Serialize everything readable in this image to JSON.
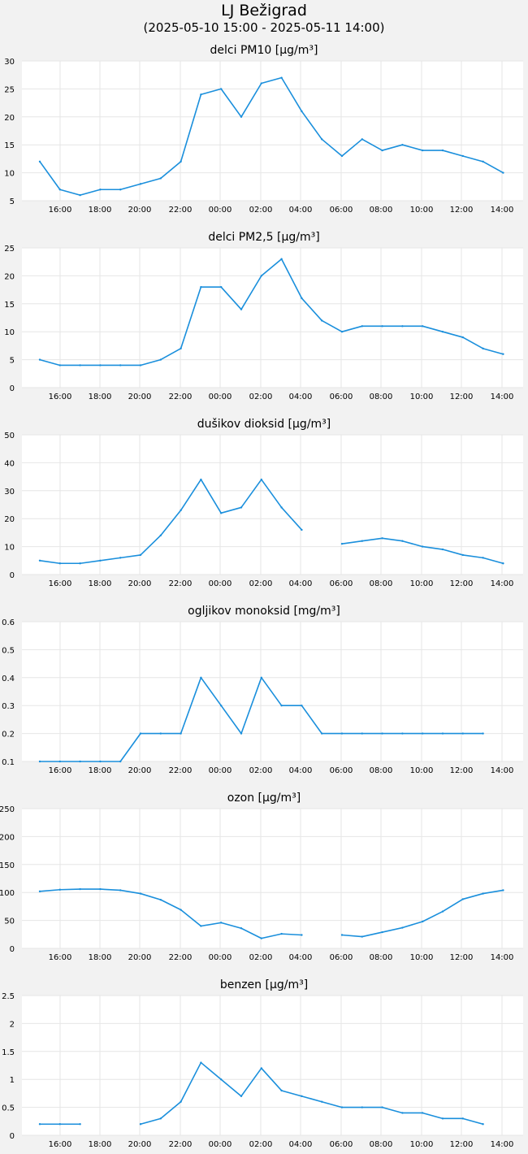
{
  "header": {
    "station": "LJ Bežigrad",
    "range": "(2025-05-10 15:00 - 2025-05-11 14:00)"
  },
  "colors": {
    "line": "#1a8fdc",
    "background": "#f2f2f2",
    "plot_background": "#ffffff",
    "grid": "#e6e6e6"
  },
  "chart_data": [
    {
      "type": "line",
      "title": "delci PM10 [µg/m³]",
      "x": [
        "15:00",
        "16:00",
        "17:00",
        "18:00",
        "19:00",
        "20:00",
        "21:00",
        "22:00",
        "23:00",
        "00:00",
        "01:00",
        "02:00",
        "03:00",
        "04:00",
        "05:00",
        "06:00",
        "07:00",
        "08:00",
        "09:00",
        "10:00",
        "11:00",
        "12:00",
        "13:00",
        "14:00"
      ],
      "values": [
        12,
        7,
        6,
        7,
        7,
        8,
        9,
        12,
        24,
        25,
        20,
        26,
        27,
        21,
        16,
        13,
        16,
        14,
        15,
        14,
        14,
        13,
        12,
        10
      ],
      "xticks": [
        "16:00",
        "18:00",
        "20:00",
        "22:00",
        "00:00",
        "02:00",
        "04:00",
        "06:00",
        "08:00",
        "10:00",
        "12:00",
        "14:00"
      ],
      "yticks": [
        "5",
        "10",
        "15",
        "20",
        "25",
        "30"
      ],
      "ylim": [
        5,
        30
      ],
      "grid": true
    },
    {
      "type": "line",
      "title": "delci PM2,5 [µg/m³]",
      "x": [
        "15:00",
        "16:00",
        "17:00",
        "18:00",
        "19:00",
        "20:00",
        "21:00",
        "22:00",
        "23:00",
        "00:00",
        "01:00",
        "02:00",
        "03:00",
        "04:00",
        "05:00",
        "06:00",
        "07:00",
        "08:00",
        "09:00",
        "10:00",
        "11:00",
        "12:00",
        "13:00",
        "14:00"
      ],
      "values": [
        5,
        4,
        4,
        4,
        4,
        4,
        5,
        7,
        18,
        18,
        14,
        20,
        23,
        16,
        12,
        10,
        11,
        11,
        11,
        11,
        10,
        9,
        7,
        6
      ],
      "xticks": [
        "16:00",
        "18:00",
        "20:00",
        "22:00",
        "00:00",
        "02:00",
        "04:00",
        "06:00",
        "08:00",
        "10:00",
        "12:00",
        "14:00"
      ],
      "yticks": [
        "0",
        "5",
        "10",
        "15",
        "20",
        "25"
      ],
      "ylim": [
        0,
        25
      ],
      "grid": true
    },
    {
      "type": "line",
      "title": "dušikov dioksid [µg/m³]",
      "x": [
        "15:00",
        "16:00",
        "17:00",
        "18:00",
        "19:00",
        "20:00",
        "21:00",
        "22:00",
        "23:00",
        "00:00",
        "01:00",
        "02:00",
        "03:00",
        "04:00",
        "05:00",
        "06:00",
        "07:00",
        "08:00",
        "09:00",
        "10:00",
        "11:00",
        "12:00",
        "13:00",
        "14:00"
      ],
      "values": [
        5,
        4,
        4,
        5,
        6,
        7,
        14,
        23,
        34,
        22,
        24,
        34,
        24,
        16,
        null,
        11,
        12,
        13,
        12,
        10,
        9,
        7,
        6,
        4
      ],
      "xticks": [
        "16:00",
        "18:00",
        "20:00",
        "22:00",
        "00:00",
        "02:00",
        "04:00",
        "06:00",
        "08:00",
        "10:00",
        "12:00",
        "14:00"
      ],
      "yticks": [
        "0",
        "10",
        "20",
        "30",
        "40",
        "50"
      ],
      "ylim": [
        0,
        50
      ],
      "grid": true
    },
    {
      "type": "line",
      "title": "ogljikov monoksid [mg/m³]",
      "x": [
        "15:00",
        "16:00",
        "17:00",
        "18:00",
        "19:00",
        "20:00",
        "21:00",
        "22:00",
        "23:00",
        "00:00",
        "01:00",
        "02:00",
        "03:00",
        "04:00",
        "05:00",
        "06:00",
        "07:00",
        "08:00",
        "09:00",
        "10:00",
        "11:00",
        "12:00",
        "13:00",
        "14:00"
      ],
      "values": [
        0.1,
        0.1,
        0.1,
        0.1,
        0.1,
        0.2,
        0.2,
        0.2,
        0.4,
        0.3,
        0.2,
        0.4,
        0.3,
        0.3,
        0.2,
        0.2,
        0.2,
        0.2,
        0.2,
        0.2,
        0.2,
        0.2,
        0.2,
        null
      ],
      "xticks": [
        "16:00",
        "18:00",
        "20:00",
        "22:00",
        "00:00",
        "02:00",
        "04:00",
        "06:00",
        "08:00",
        "10:00",
        "12:00",
        "14:00"
      ],
      "yticks": [
        "0.1",
        "0.2",
        "0.3",
        "0.4",
        "0.5",
        "0.6"
      ],
      "ylim": [
        0.1,
        0.6
      ],
      "grid": true
    },
    {
      "type": "line",
      "title": "ozon [µg/m³]",
      "x": [
        "15:00",
        "16:00",
        "17:00",
        "18:00",
        "19:00",
        "20:00",
        "21:00",
        "22:00",
        "23:00",
        "00:00",
        "01:00",
        "02:00",
        "03:00",
        "04:00",
        "05:00",
        "06:00",
        "07:00",
        "08:00",
        "09:00",
        "10:00",
        "11:00",
        "12:00",
        "13:00",
        "14:00"
      ],
      "values": [
        102,
        105,
        106,
        106,
        104,
        98,
        87,
        69,
        40,
        46,
        36,
        18,
        26,
        24,
        null,
        24,
        21,
        29,
        37,
        48,
        66,
        88,
        98,
        104
      ],
      "xticks": [
        "16:00",
        "18:00",
        "20:00",
        "22:00",
        "00:00",
        "02:00",
        "04:00",
        "06:00",
        "08:00",
        "10:00",
        "12:00",
        "14:00"
      ],
      "yticks": [
        "0",
        "50",
        "100",
        "150",
        "200",
        "250"
      ],
      "ylim": [
        0,
        250
      ],
      "grid": true
    },
    {
      "type": "line",
      "title": "benzen [µg/m³]",
      "x": [
        "15:00",
        "16:00",
        "17:00",
        "18:00",
        "19:00",
        "20:00",
        "21:00",
        "22:00",
        "23:00",
        "00:00",
        "01:00",
        "02:00",
        "03:00",
        "04:00",
        "05:00",
        "06:00",
        "07:00",
        "08:00",
        "09:00",
        "10:00",
        "11:00",
        "12:00",
        "13:00",
        "14:00"
      ],
      "values": [
        0.2,
        0.2,
        0.2,
        null,
        null,
        0.2,
        0.3,
        0.6,
        1.3,
        1.0,
        0.7,
        1.2,
        0.8,
        0.7,
        0.6,
        0.5,
        0.5,
        0.5,
        0.4,
        0.4,
        0.3,
        0.3,
        0.2,
        null
      ],
      "xticks": [
        "16:00",
        "18:00",
        "20:00",
        "22:00",
        "00:00",
        "02:00",
        "04:00",
        "06:00",
        "08:00",
        "10:00",
        "12:00",
        "14:00"
      ],
      "yticks": [
        "0",
        "0.5",
        "1",
        "1.5",
        "2",
        "2.5"
      ],
      "ylim": [
        0,
        2.5
      ],
      "grid": true
    }
  ]
}
